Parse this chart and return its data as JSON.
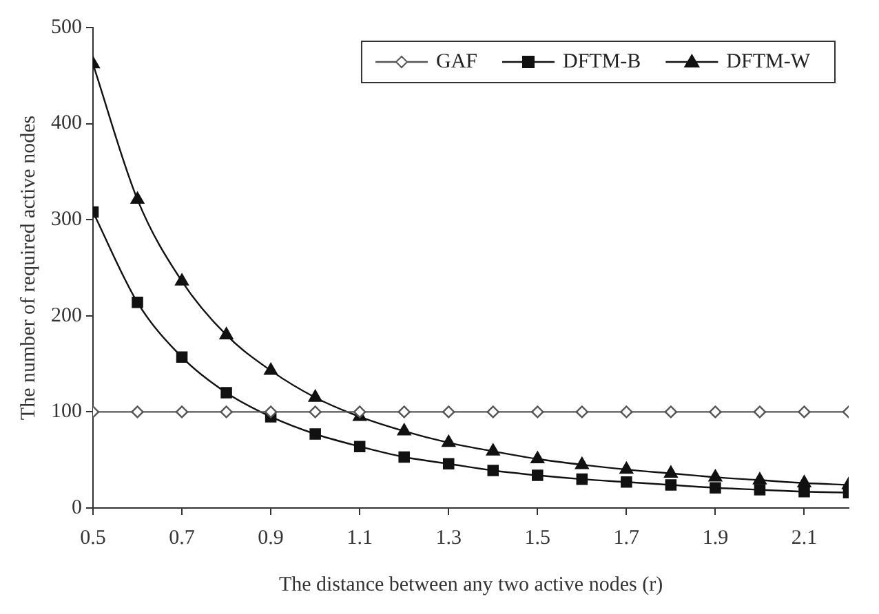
{
  "chart_data": {
    "type": "line",
    "xlabel": "The distance between any two active nodes (r)",
    "ylabel": "The number of required active nodes",
    "x": [
      0.5,
      0.6,
      0.7,
      0.8,
      0.9,
      1.0,
      1.1,
      1.2,
      1.3,
      1.4,
      1.5,
      1.6,
      1.7,
      1.8,
      1.9,
      2.0,
      2.1,
      2.2
    ],
    "xlim": [
      0.5,
      2.2
    ],
    "xticks": [
      0.5,
      0.7,
      0.9,
      1.1,
      1.3,
      1.5,
      1.7,
      1.9,
      2.1
    ],
    "ylim": [
      0,
      500
    ],
    "yticks": [
      0,
      100,
      200,
      300,
      400,
      500
    ],
    "grid": false,
    "legend": "top right",
    "series": [
      {
        "name": "GAF",
        "color": "#555555",
        "marker": "diamond",
        "values": [
          100,
          100,
          100,
          100,
          100,
          100,
          100,
          100,
          100,
          100,
          100,
          100,
          100,
          100,
          100,
          100,
          100,
          100
        ]
      },
      {
        "name": "DFTM-B",
        "color": "#111111",
        "marker": "square",
        "values": [
          308,
          214,
          157,
          120,
          95,
          77,
          64,
          53,
          46,
          39,
          34,
          30,
          27,
          24,
          21,
          19,
          17,
          16
        ]
      },
      {
        "name": "DFTM-W",
        "color": "#111111",
        "marker": "triangle",
        "values": [
          462,
          321,
          236,
          180,
          143,
          115,
          95,
          80,
          68,
          59,
          51,
          45,
          40,
          36,
          32,
          29,
          26,
          24
        ]
      }
    ]
  }
}
